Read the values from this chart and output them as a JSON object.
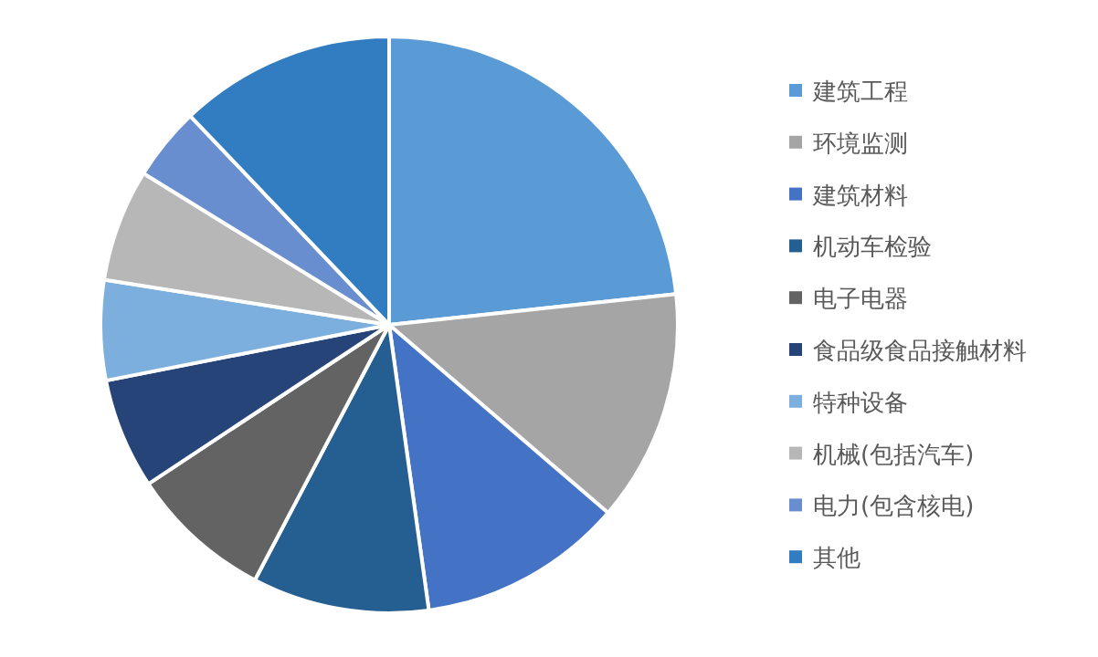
{
  "chart_data": {
    "type": "pie",
    "categories": [
      "建筑工程",
      "环境监测",
      "建筑材料",
      "机动车检验",
      "电子电器",
      "食品级食品接触材料",
      "特种设备",
      "机械(包括汽车)",
      "电力(包含核电)",
      "其他"
    ],
    "values": [
      23.3,
      13.0,
      11.5,
      9.9,
      8.0,
      6.2,
      5.6,
      6.3,
      4.1,
      12.1
    ],
    "colors": [
      "#5b9bd5",
      "#a5a5a5",
      "#4472c4",
      "#255e91",
      "#636363",
      "#264478",
      "#7cafdd",
      "#b7b7b7",
      "#698ed0",
      "#327dc2"
    ],
    "legend": "right"
  }
}
